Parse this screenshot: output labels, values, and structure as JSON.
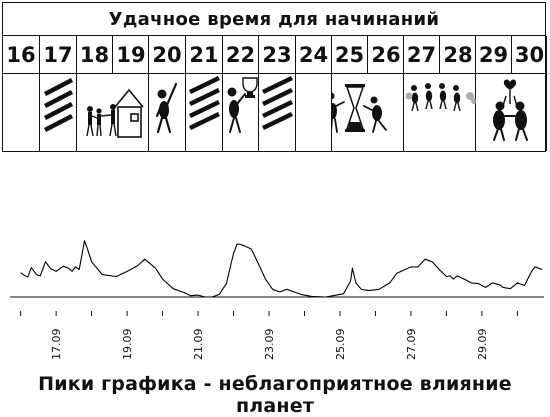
{
  "table": {
    "title": "Удачное время для начинаний",
    "days": [
      "16",
      "17",
      "18",
      "19",
      "20",
      "21",
      "22",
      "23",
      "24",
      "25",
      "26",
      "27",
      "28",
      "29",
      "30"
    ],
    "pictograms": {
      "17": "diagonal-stripes-icon",
      "18": "family-house-icon",
      "19": "family-house-icon",
      "20": "person-pointing-icon",
      "21": "diagonal-stripes-icon",
      "22": "person-with-trophy-icon",
      "23": "diagonal-stripes-icon",
      "25": "hourglass-with-people-icon",
      "26": "hourglass-with-people-icon",
      "27": "walking-group-icon",
      "28": "walking-group-icon",
      "29": "couple-with-hearts-icon",
      "30": "couple-with-hearts-icon"
    }
  },
  "chart_data": {
    "type": "line",
    "x_tick_labels": [
      "17.09",
      "19.09",
      "21.09",
      "23.09",
      "25.09",
      "27.09",
      "29.09"
    ],
    "x": [
      16.0,
      16.1,
      16.2,
      16.3,
      16.45,
      16.55,
      16.7,
      16.85,
      17.0,
      17.2,
      17.35,
      17.45,
      17.55,
      17.65,
      17.7,
      17.8,
      17.9,
      18.0,
      18.3,
      18.7,
      19.0,
      19.3,
      19.5,
      19.8,
      20.0,
      20.3,
      20.6,
      20.8,
      21.0,
      21.2,
      21.4,
      21.6,
      21.8,
      22.0,
      22.1,
      22.2,
      22.3,
      22.5,
      22.7,
      22.9,
      23.1,
      23.3,
      23.5,
      23.7,
      23.9,
      24.2,
      24.6,
      24.9,
      25.1,
      25.2,
      25.3,
      25.35,
      25.45,
      25.6,
      25.8,
      26.1,
      26.4,
      26.6,
      26.8,
      27.0,
      27.2,
      27.4,
      27.6,
      27.8,
      28.0,
      28.1,
      28.2,
      28.3,
      28.5,
      28.7,
      28.9,
      29.1,
      29.3,
      29.5,
      29.6,
      29.8,
      30.0,
      30.2,
      30.4,
      30.5,
      30.6,
      30.7
    ],
    "y": [
      0.38,
      0.34,
      0.31,
      0.46,
      0.35,
      0.33,
      0.55,
      0.44,
      0.4,
      0.48,
      0.45,
      0.4,
      0.47,
      0.43,
      0.58,
      0.88,
      0.72,
      0.55,
      0.35,
      0.32,
      0.4,
      0.49,
      0.59,
      0.45,
      0.28,
      0.13,
      0.07,
      0.02,
      0.03,
      0.0,
      0.0,
      0.04,
      0.21,
      0.68,
      0.83,
      0.82,
      0.8,
      0.75,
      0.52,
      0.28,
      0.12,
      0.08,
      0.12,
      0.08,
      0.04,
      0.01,
      0.0,
      0.03,
      0.05,
      0.15,
      0.25,
      0.45,
      0.22,
      0.12,
      0.1,
      0.12,
      0.22,
      0.37,
      0.42,
      0.47,
      0.47,
      0.59,
      0.55,
      0.43,
      0.32,
      0.33,
      0.28,
      0.33,
      0.28,
      0.22,
      0.21,
      0.15,
      0.22,
      0.19,
      0.15,
      0.13,
      0.22,
      0.18,
      0.4,
      0.47,
      0.45,
      0.43
    ],
    "xlim": [
      15.7,
      30.75
    ],
    "ylim": [
      0,
      1
    ],
    "ylabel": "",
    "xlabel": "",
    "title": "",
    "grid": false,
    "line_color": "#000000"
  },
  "caption": "Пики графика - неблагоприятное влияние планет"
}
